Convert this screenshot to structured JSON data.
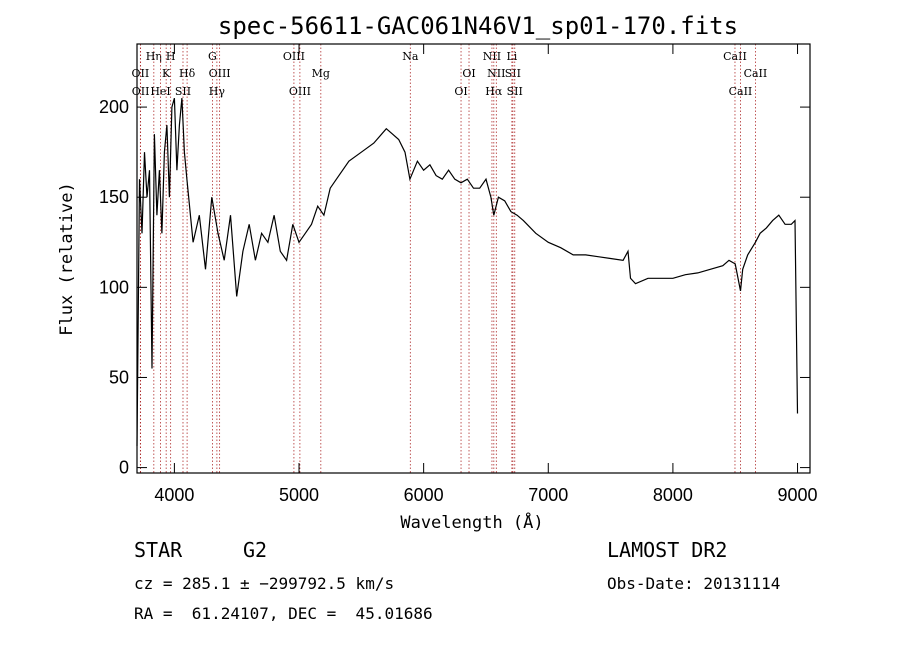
{
  "chart_data": {
    "type": "line",
    "title": "spec-56611-GAC061N46V1_sp01-170.fits",
    "xlabel": "Wavelength (Å)",
    "ylabel": "Flux (relative)",
    "xlim": [
      3700,
      9100
    ],
    "ylim": [
      -3,
      235
    ],
    "xticks": [
      4000,
      5000,
      6000,
      7000,
      8000,
      9000
    ],
    "yticks": [
      0,
      50,
      100,
      150,
      200
    ],
    "grid": false,
    "series": [
      {
        "x": [
          3700,
          3720,
          3740,
          3760,
          3780,
          3800,
          3820,
          3840,
          3860,
          3880,
          3900,
          3920,
          3940,
          3960,
          3980,
          4000,
          4020,
          4040,
          4060,
          4080,
          4100,
          4150,
          4200,
          4250,
          4300,
          4350,
          4400,
          4450,
          4500,
          4550,
          4600,
          4650,
          4700,
          4750,
          4800,
          4850,
          4900,
          4950,
          5000,
          5050,
          5100,
          5150,
          5200,
          5250,
          5300,
          5400,
          5500,
          5600,
          5700,
          5750,
          5800,
          5850,
          5890,
          5950,
          6000,
          6050,
          6100,
          6150,
          6200,
          6250,
          6300,
          6350,
          6400,
          6450,
          6500,
          6540,
          6563,
          6600,
          6650,
          6700,
          6750,
          6800,
          6900,
          7000,
          7100,
          7200,
          7300,
          7400,
          7500,
          7600,
          7640,
          7660,
          7700,
          7800,
          7900,
          8000,
          8100,
          8200,
          8300,
          8400,
          8450,
          8500,
          8542,
          8560,
          8600,
          8662,
          8700,
          8750,
          8800,
          8850,
          8900,
          8950,
          8980,
          9000
        ],
        "y": [
          12,
          160,
          130,
          175,
          150,
          165,
          55,
          185,
          140,
          165,
          130,
          175,
          190,
          150,
          200,
          205,
          165,
          190,
          205,
          175,
          160,
          125,
          140,
          110,
          150,
          130,
          115,
          140,
          95,
          120,
          135,
          115,
          130,
          125,
          140,
          120,
          115,
          135,
          125,
          130,
          135,
          145,
          140,
          155,
          160,
          170,
          175,
          180,
          188,
          185,
          182,
          175,
          160,
          170,
          165,
          168,
          162,
          160,
          165,
          160,
          158,
          160,
          155,
          155,
          160,
          150,
          140,
          150,
          148,
          142,
          140,
          137,
          130,
          125,
          122,
          118,
          118,
          117,
          116,
          115,
          120,
          105,
          102,
          105,
          105,
          105,
          107,
          108,
          110,
          112,
          115,
          113,
          98,
          110,
          118,
          125,
          130,
          133,
          137,
          140,
          135,
          135,
          137,
          30
        ]
      }
    ],
    "lines": [
      {
        "label": "OII",
        "x": 3727,
        "row": 1
      },
      {
        "label": "OII",
        "x": 3729,
        "row": 2
      },
      {
        "label": "Hη",
        "x": 3835,
        "row": 0
      },
      {
        "label": "HeI",
        "x": 3889,
        "row": 2
      },
      {
        "label": "K",
        "x": 3934,
        "row": 1
      },
      {
        "label": "H",
        "x": 3970,
        "row": 0
      },
      {
        "label": "SII",
        "x": 4069,
        "row": 2
      },
      {
        "label": "Hδ",
        "x": 4102,
        "row": 1
      },
      {
        "label": "G",
        "x": 4305,
        "row": 0
      },
      {
        "label": "Hγ",
        "x": 4341,
        "row": 2
      },
      {
        "label": "OIII",
        "x": 4363,
        "row": 1
      },
      {
        "label": "OIII",
        "x": 4959,
        "row": 0
      },
      {
        "label": "OIII",
        "x": 5007,
        "row": 2
      },
      {
        "label": "Mg",
        "x": 5175,
        "row": 1
      },
      {
        "label": "Na",
        "x": 5893,
        "row": 0
      },
      {
        "label": "OI",
        "x": 6300,
        "row": 2
      },
      {
        "label": "OI",
        "x": 6364,
        "row": 1
      },
      {
        "label": "NII",
        "x": 6548,
        "row": 0
      },
      {
        "label": "Hα",
        "x": 6563,
        "row": 2
      },
      {
        "label": "NII",
        "x": 6583,
        "row": 1
      },
      {
        "label": "Li",
        "x": 6708,
        "row": 0
      },
      {
        "label": "SII",
        "x": 6716,
        "row": 1
      },
      {
        "label": "SII",
        "x": 6731,
        "row": 2
      },
      {
        "label": "CaII",
        "x": 8498,
        "row": 0
      },
      {
        "label": "CaII",
        "x": 8542,
        "row": 2
      },
      {
        "label": "CaII",
        "x": 8662,
        "row": 1
      }
    ]
  },
  "info": {
    "object_class": "STAR",
    "subclass": "G2",
    "survey": "LAMOST DR2",
    "cz": "cz = 285.1 ± −299792.5 km/s",
    "obs_date": "Obs-Date: 20131114",
    "coords": "RA =  61.24107, DEC =  45.01686"
  }
}
